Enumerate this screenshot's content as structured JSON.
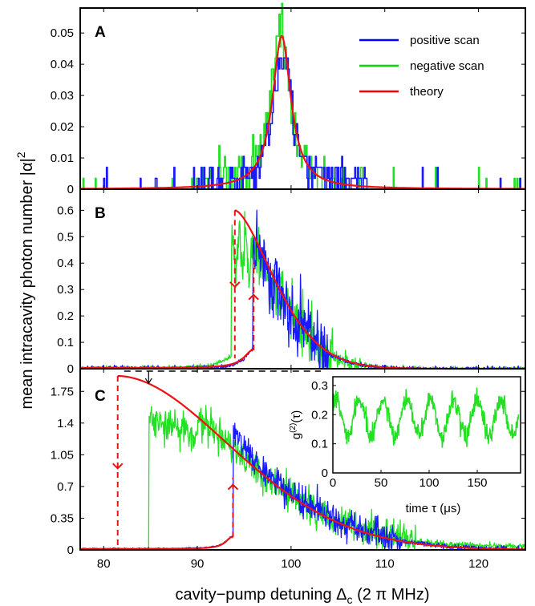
{
  "chart_data": {
    "type": "line",
    "xlabel": "cavity−pump detuning",
    "xlabel_symbol": "Δ",
    "xlabel_sub": "c",
    "xlabel_units": "(2 π MHz)",
    "ylabel": "mean intracavity photon number",
    "ylabel_symbol": "|α|",
    "ylabel_sup": "2",
    "xlim": [
      77.5,
      125
    ],
    "xticks": [
      "80",
      "90",
      "100",
      "110",
      "120"
    ],
    "legend": {
      "placement": "top-right of panel A",
      "entries": [
        {
          "name": "positive scan",
          "color": "#0000ff"
        },
        {
          "name": "negative scan",
          "color": "#00dd00"
        },
        {
          "name": "theory",
          "color": "#ff0000"
        }
      ]
    },
    "colors": {
      "positive": "#1a1aff",
      "negative": "#22e022",
      "theory": "#ee1111",
      "hysteresis_arrow": "#ee1111"
    },
    "panels": [
      {
        "label": "A",
        "ylim": [
          0,
          0.058
        ],
        "yticks": [
          "0",
          "0.01",
          "0.02",
          "0.03",
          "0.04",
          "0.05"
        ],
        "peak_x": 99.0,
        "peak_y": 0.049,
        "series": [
          {
            "name": "positive scan",
            "shape": "noisy Lorentzian",
            "peak_x": 99.0,
            "peak_y": 0.05
          },
          {
            "name": "negative scan",
            "shape": "noisy Lorentzian",
            "peak_x": 98.8,
            "peak_y": 0.058
          },
          {
            "name": "theory",
            "shape": "Lorentzian",
            "peak_x": 99.0,
            "peak_y": 0.049
          }
        ]
      },
      {
        "label": "B",
        "ylim": [
          0,
          0.68
        ],
        "yticks": [
          "0",
          "0.1",
          "0.2",
          "0.3",
          "0.4",
          "0.5",
          "0.6"
        ],
        "theory_peak": {
          "x": 94.0,
          "y": 0.6
        },
        "down_jump": {
          "x": 94.0,
          "from": 0.6,
          "to": 0.04
        },
        "up_jump": {
          "x": 96.0,
          "from": 0.07,
          "to": 0.4
        }
      },
      {
        "label": "C",
        "ylim": [
          0,
          2.0
        ],
        "yticks": [
          "0",
          "0.35",
          "0.7",
          "1.05",
          "1.4",
          "1.75"
        ],
        "theory_peak": {
          "x": 81.5,
          "y": 1.92
        },
        "down_jump": {
          "x": 81.5,
          "from": 1.92,
          "to": 0.0
        },
        "up_jump": {
          "x": 93.8,
          "from": 0.14,
          "to": 0.8
        },
        "negative_jump_x": 84.8,
        "inset": {
          "ylabel": "g",
          "ylabel_sup": "(2)",
          "ylabel_arg": "(τ)",
          "xlabel": "time τ (μs)",
          "xlim": [
            0,
            195
          ],
          "ylim": [
            0,
            0.33
          ],
          "xticks": [
            "0",
            "50",
            "100",
            "150"
          ],
          "yticks": [
            "0",
            "0.1",
            "0.2",
            "0.3"
          ],
          "oscillation": {
            "mean": 0.19,
            "amplitude": 0.06,
            "period_us": 24.5
          }
        }
      }
    ]
  }
}
